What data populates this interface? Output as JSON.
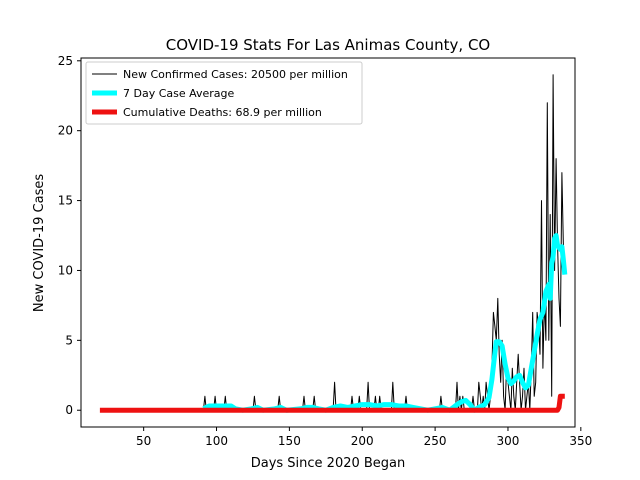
{
  "chart_data": {
    "type": "line",
    "title": "COVID-19 Stats For Las Animas County, CO",
    "xlabel": "Days Since 2020 Began",
    "ylabel": "New COVID-19 Cases",
    "xlim": [
      7,
      346
    ],
    "ylim": [
      -1.2,
      25.2
    ],
    "xticks": [
      50,
      100,
      150,
      200,
      250,
      300,
      350
    ],
    "yticks": [
      0,
      5,
      10,
      15,
      20,
      25
    ],
    "grid": false,
    "legend_position": "top-left",
    "series": [
      {
        "name": "New Confirmed Cases: 20500 per million",
        "color": "#000000",
        "style": "thin",
        "points": [
          [
            91,
            0
          ],
          [
            92,
            1
          ],
          [
            93,
            0
          ],
          [
            98,
            0
          ],
          [
            99,
            1
          ],
          [
            100,
            0
          ],
          [
            105,
            0
          ],
          [
            106,
            1
          ],
          [
            107,
            0
          ],
          [
            125,
            0
          ],
          [
            126,
            1
          ],
          [
            127,
            0
          ],
          [
            142,
            0
          ],
          [
            143,
            1
          ],
          [
            144,
            0
          ],
          [
            159,
            0
          ],
          [
            160,
            1
          ],
          [
            161,
            0
          ],
          [
            166,
            0
          ],
          [
            167,
            1
          ],
          [
            168,
            0
          ],
          [
            180,
            0
          ],
          [
            181,
            2
          ],
          [
            182,
            0
          ],
          [
            192,
            0
          ],
          [
            193,
            1
          ],
          [
            194,
            0
          ],
          [
            197,
            0
          ],
          [
            198,
            1
          ],
          [
            199,
            0
          ],
          [
            203,
            0
          ],
          [
            204,
            2
          ],
          [
            205,
            0
          ],
          [
            208,
            0
          ],
          [
            209,
            1
          ],
          [
            210,
            0
          ],
          [
            211,
            0
          ],
          [
            212,
            1
          ],
          [
            213,
            0
          ],
          [
            220,
            0
          ],
          [
            221,
            2
          ],
          [
            222,
            0
          ],
          [
            229,
            0
          ],
          [
            230,
            1
          ],
          [
            231,
            0
          ],
          [
            253,
            0
          ],
          [
            254,
            1
          ],
          [
            255,
            0
          ],
          [
            264,
            0
          ],
          [
            265,
            2
          ],
          [
            266,
            0
          ],
          [
            267,
            1
          ],
          [
            268,
            0
          ],
          [
            269,
            1
          ],
          [
            270,
            0
          ],
          [
            275,
            0
          ],
          [
            276,
            1
          ],
          [
            277,
            0
          ],
          [
            279,
            0
          ],
          [
            280,
            2
          ],
          [
            281,
            1
          ],
          [
            282,
            0
          ],
          [
            283,
            1
          ],
          [
            284,
            0
          ],
          [
            285,
            2
          ],
          [
            286,
            1
          ],
          [
            287,
            0
          ],
          [
            288,
            1
          ],
          [
            289,
            3
          ],
          [
            290,
            7
          ],
          [
            291,
            6
          ],
          [
            292,
            5
          ],
          [
            293,
            8
          ],
          [
            294,
            4
          ],
          [
            295,
            2
          ],
          [
            296,
            5
          ],
          [
            297,
            1
          ],
          [
            298,
            0
          ],
          [
            299,
            3
          ],
          [
            300,
            2
          ],
          [
            301,
            1
          ],
          [
            302,
            0
          ],
          [
            303,
            3
          ],
          [
            304,
            1
          ],
          [
            305,
            0
          ],
          [
            306,
            2
          ],
          [
            307,
            4
          ],
          [
            308,
            2
          ],
          [
            309,
            0
          ],
          [
            310,
            1
          ],
          [
            311,
            3
          ],
          [
            312,
            0
          ],
          [
            313,
            1
          ],
          [
            314,
            2
          ],
          [
            315,
            0
          ],
          [
            316,
            3
          ],
          [
            317,
            7
          ],
          [
            318,
            1
          ],
          [
            319,
            2
          ],
          [
            320,
            7
          ],
          [
            321,
            6
          ],
          [
            322,
            4
          ],
          [
            323,
            15
          ],
          [
            324,
            3
          ],
          [
            325,
            8
          ],
          [
            326,
            5
          ],
          [
            327,
            22
          ],
          [
            328,
            5
          ],
          [
            329,
            14
          ],
          [
            330,
            1
          ],
          [
            331,
            24
          ],
          [
            332,
            10
          ],
          [
            333,
            18
          ],
          [
            334,
            12
          ],
          [
            335,
            8
          ],
          [
            336,
            6
          ],
          [
            337,
            17
          ],
          [
            338,
            12
          ],
          [
            339,
            10
          ]
        ]
      },
      {
        "name": "7 Day Case Average",
        "color": "#00ffff",
        "style": "thick",
        "points": [
          [
            91,
            0.1
          ],
          [
            95,
            0.3
          ],
          [
            100,
            0.3
          ],
          [
            105,
            0.3
          ],
          [
            110,
            0.3
          ],
          [
            113,
            0.1
          ],
          [
            118,
            0
          ],
          [
            124,
            0.1
          ],
          [
            128,
            0.2
          ],
          [
            132,
            0
          ],
          [
            140,
            0.1
          ],
          [
            144,
            0.2
          ],
          [
            148,
            0
          ],
          [
            158,
            0.1
          ],
          [
            162,
            0.2
          ],
          [
            166,
            0.2
          ],
          [
            170,
            0.1
          ],
          [
            175,
            0
          ],
          [
            180,
            0.2
          ],
          [
            185,
            0.3
          ],
          [
            190,
            0.2
          ],
          [
            195,
            0.3
          ],
          [
            200,
            0.4
          ],
          [
            205,
            0.4
          ],
          [
            210,
            0.3
          ],
          [
            215,
            0.4
          ],
          [
            220,
            0.4
          ],
          [
            225,
            0.3
          ],
          [
            230,
            0.3
          ],
          [
            235,
            0.2
          ],
          [
            240,
            0.1
          ],
          [
            245,
            0
          ],
          [
            250,
            0.1
          ],
          [
            255,
            0.2
          ],
          [
            260,
            0
          ],
          [
            265,
            0.4
          ],
          [
            268,
            0.6
          ],
          [
            271,
            0.7
          ],
          [
            274,
            0.4
          ],
          [
            277,
            0
          ],
          [
            280,
            0.2
          ],
          [
            284,
            0.4
          ],
          [
            287,
            0.9
          ],
          [
            289,
            2.2
          ],
          [
            291,
            4.1
          ],
          [
            292,
            4.9
          ],
          [
            294,
            4.9
          ],
          [
            296,
            4.6
          ],
          [
            298,
            3.3
          ],
          [
            300,
            2.3
          ],
          [
            302,
            1.9
          ],
          [
            304,
            2.1
          ],
          [
            306,
            2.4
          ],
          [
            308,
            2.5
          ],
          [
            310,
            2.0
          ],
          [
            312,
            1.6
          ],
          [
            314,
            1.8
          ],
          [
            316,
            3.0
          ],
          [
            318,
            4.2
          ],
          [
            320,
            5.4
          ],
          [
            322,
            6.5
          ],
          [
            324,
            7.0
          ],
          [
            326,
            8.5
          ],
          [
            328,
            9.0
          ],
          [
            329,
            8.0
          ],
          [
            330,
            10.5
          ],
          [
            331,
            11.0
          ],
          [
            332,
            12.3
          ],
          [
            333,
            12.5
          ],
          [
            334,
            11.8
          ],
          [
            336,
            11.5
          ],
          [
            337,
            11.7
          ],
          [
            338,
            10.8
          ],
          [
            339,
            9.7
          ]
        ]
      },
      {
        "name": "Cumulative Deaths: 68.9 per million",
        "color": "#ee1111",
        "style": "thick",
        "points": [
          [
            20,
            0
          ],
          [
            60,
            0
          ],
          [
            100,
            0
          ],
          [
            150,
            0
          ],
          [
            200,
            0
          ],
          [
            250,
            0
          ],
          [
            300,
            0
          ],
          [
            334,
            0
          ],
          [
            335,
            0.2
          ],
          [
            336,
            1.0
          ],
          [
            339,
            1.0
          ]
        ]
      }
    ]
  }
}
